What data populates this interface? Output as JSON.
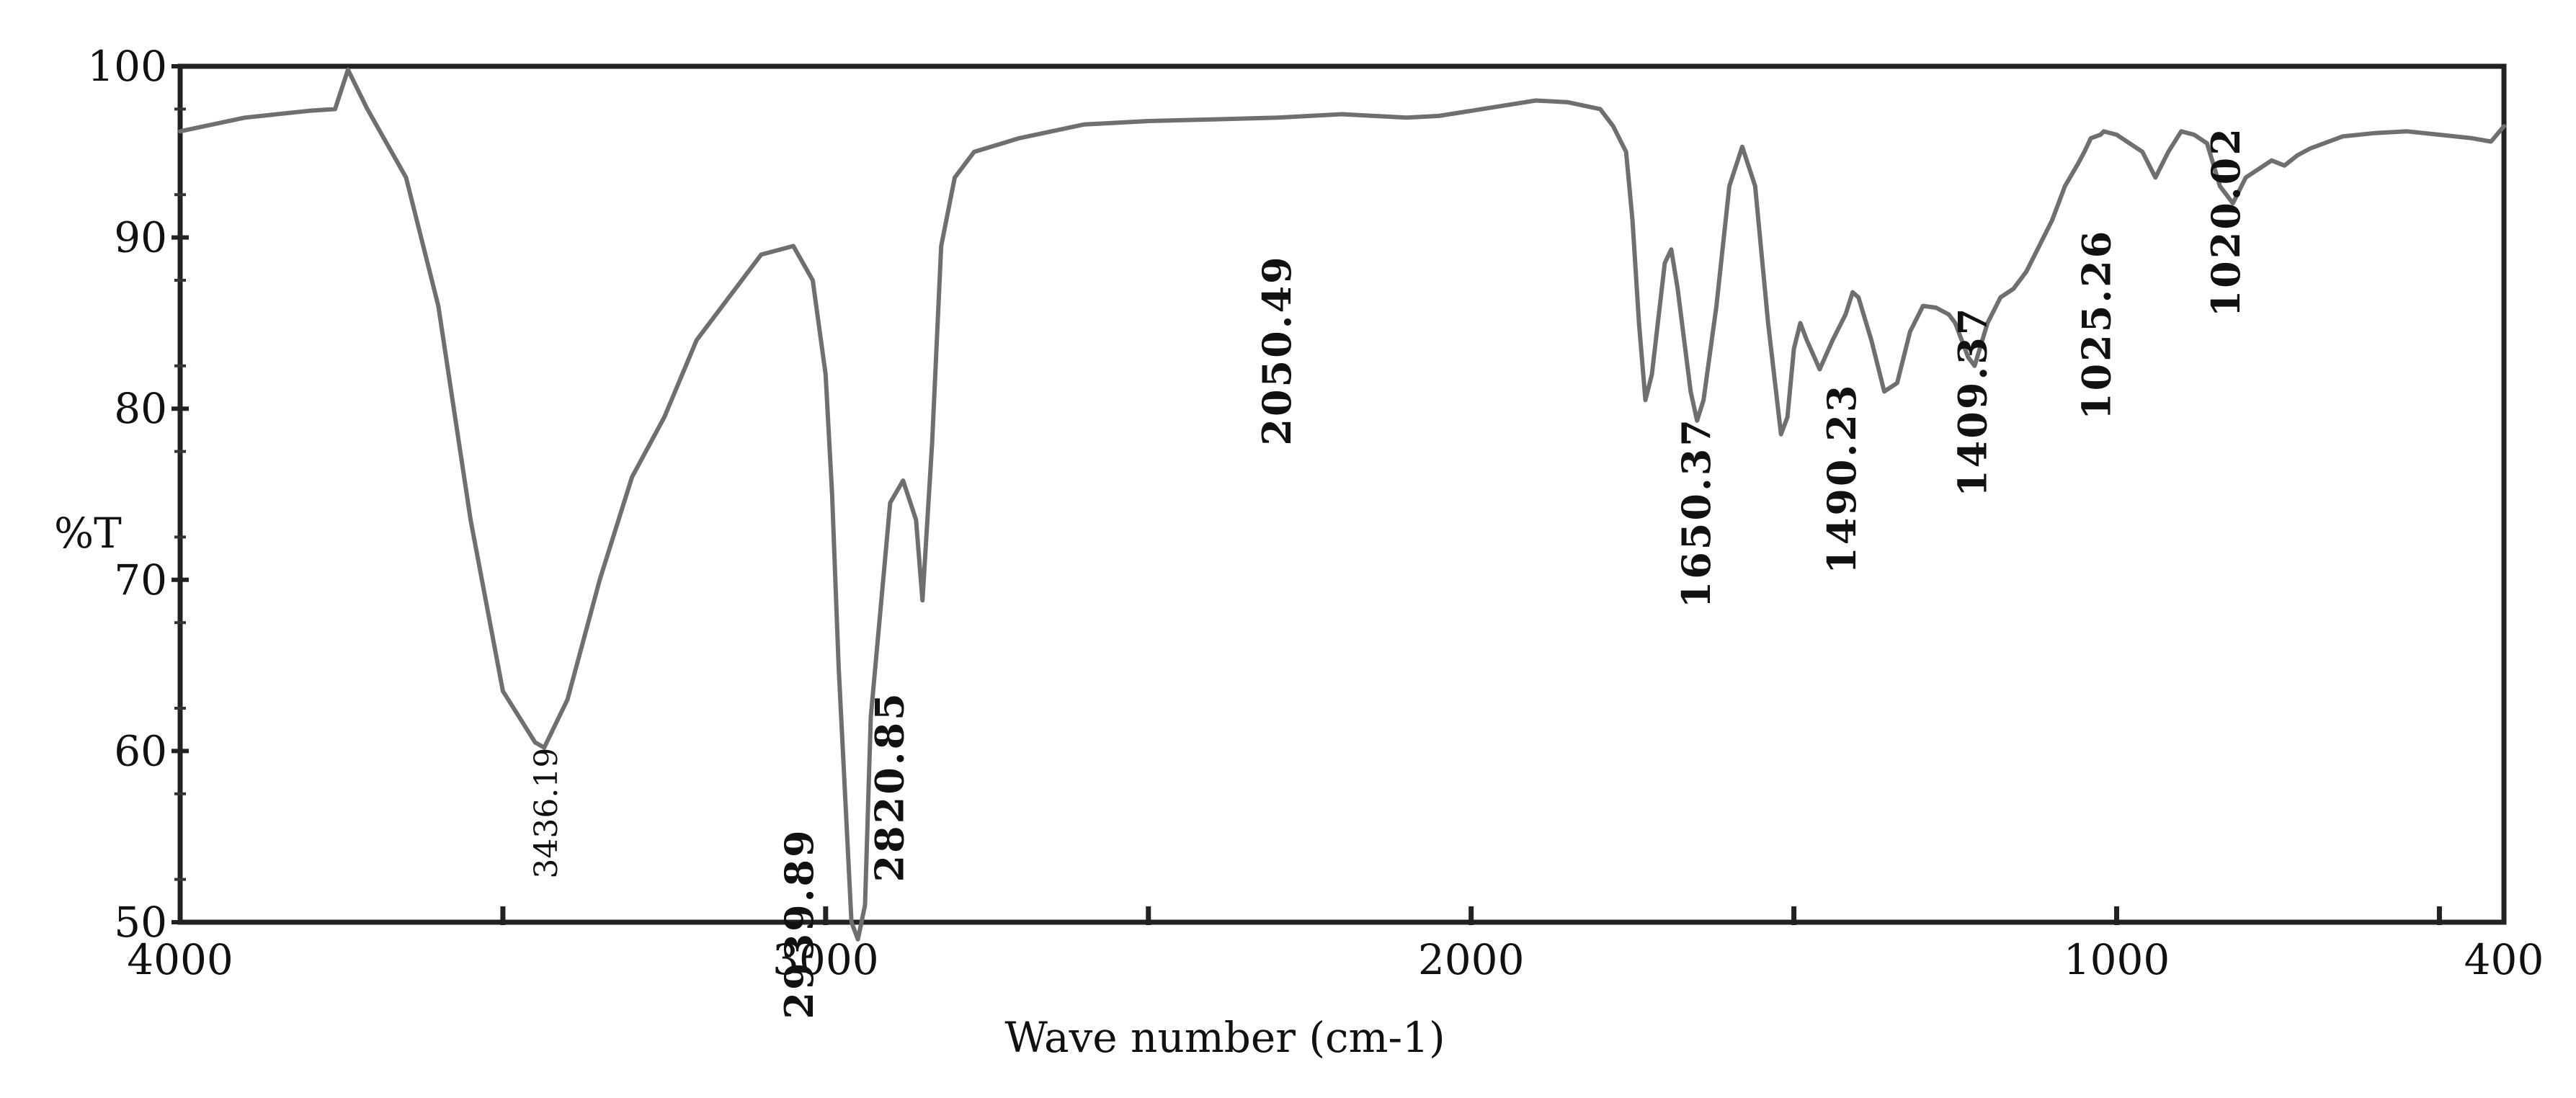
{
  "chart_data": {
    "type": "line",
    "title": "",
    "xlabel": "Wave number (cm-1)",
    "ylabel": "%T",
    "xlim": [
      4000,
      400
    ],
    "ylim": [
      50,
      100
    ],
    "x_ticks": [
      4000,
      3000,
      2000,
      1000,
      400
    ],
    "y_ticks": [
      50,
      60,
      70,
      80,
      90,
      100
    ],
    "grid": false,
    "legend": "none",
    "line_color": "#6f6f6f",
    "series": [
      {
        "x": [
          4000,
          3900,
          3800,
          3760,
          3740,
          3710,
          3650,
          3600,
          3550,
          3500,
          3450,
          3436,
          3400,
          3350,
          3300,
          3250,
          3200,
          3100,
          3050,
          3020,
          3000,
          2990,
          2980,
          2960,
          2950,
          2939,
          2930,
          2900,
          2880,
          2860,
          2850,
          2835,
          2821,
          2800,
          2770,
          2700,
          2600,
          2500,
          2400,
          2300,
          2200,
          2100,
          2050,
          2000,
          1900,
          1850,
          1800,
          1780,
          1760,
          1750,
          1740,
          1730,
          1720,
          1700,
          1690,
          1680,
          1670,
          1660,
          1650,
          1640,
          1620,
          1600,
          1580,
          1560,
          1540,
          1520,
          1510,
          1500,
          1490,
          1480,
          1460,
          1440,
          1420,
          1409,
          1400,
          1380,
          1360,
          1340,
          1320,
          1300,
          1280,
          1260,
          1250,
          1240,
          1230,
          1220,
          1200,
          1180,
          1160,
          1140,
          1120,
          1100,
          1080,
          1060,
          1050,
          1040,
          1025,
          1020,
          1000,
          980,
          960,
          940,
          920,
          900,
          880,
          860,
          840,
          820,
          800,
          780,
          760,
          740,
          720,
          700,
          650,
          600,
          550,
          500,
          450,
          420,
          400
        ],
        "y": [
          96.2,
          97.0,
          97.4,
          97.5,
          99.8,
          97.5,
          93.5,
          86.0,
          73.5,
          63.5,
          60.5,
          60.2,
          63.0,
          70.0,
          76.0,
          79.5,
          84.0,
          89.0,
          89.5,
          87.5,
          82.0,
          75.0,
          65.0,
          50.0,
          49.0,
          51.0,
          62.0,
          74.5,
          75.8,
          73.5,
          68.8,
          78.0,
          89.5,
          93.5,
          95.0,
          95.8,
          96.6,
          96.8,
          96.9,
          97.0,
          97.2,
          97.0,
          97.1,
          97.4,
          98.0,
          97.9,
          97.5,
          96.5,
          95.0,
          91.0,
          85.0,
          80.5,
          82.0,
          88.5,
          89.3,
          87.0,
          84.0,
          81.0,
          79.3,
          80.5,
          86.0,
          93.0,
          95.3,
          93.0,
          85.0,
          78.5,
          79.5,
          83.5,
          85.0,
          84.0,
          82.3,
          84.0,
          85.5,
          86.8,
          86.5,
          84.0,
          81.0,
          81.5,
          84.5,
          86.0,
          85.9,
          85.5,
          85.0,
          84.0,
          83.0,
          82.5,
          85.0,
          86.5,
          87.0,
          88.0,
          89.5,
          91.0,
          93.0,
          94.3,
          95.0,
          95.8,
          96.0,
          96.2,
          96.0,
          95.5,
          95.0,
          93.5,
          95.0,
          96.2,
          96.0,
          95.5,
          93.0,
          92.0,
          93.5,
          94.0,
          94.5,
          94.2,
          94.8,
          95.2,
          95.9,
          96.1,
          96.2,
          96.0,
          95.8,
          95.6,
          96.5
        ]
      }
    ],
    "annotations": [
      {
        "label": "3436.19",
        "x": 3436,
        "y": 60.2,
        "style": "small"
      },
      {
        "label": "2939.89",
        "x": 3040,
        "y": 55.5,
        "style": "bold"
      },
      {
        "label": "2820.85",
        "x": 2900,
        "y": 63.5,
        "style": "bold"
      },
      {
        "label": "2050.49",
        "x": 2300,
        "y": 89.0,
        "style": "bold"
      },
      {
        "label": "1650.37",
        "x": 1650,
        "y": 79.5,
        "style": "bold"
      },
      {
        "label": "1490.23",
        "x": 1425,
        "y": 81.5,
        "style": "bold"
      },
      {
        "label": "1409.37",
        "x": 1222,
        "y": 86.0,
        "style": "bold"
      },
      {
        "label": "1025.26",
        "x": 1030,
        "y": 90.5,
        "style": "bold"
      },
      {
        "label": "1020.02",
        "x": 830,
        "y": 96.5,
        "style": "bold"
      }
    ]
  }
}
